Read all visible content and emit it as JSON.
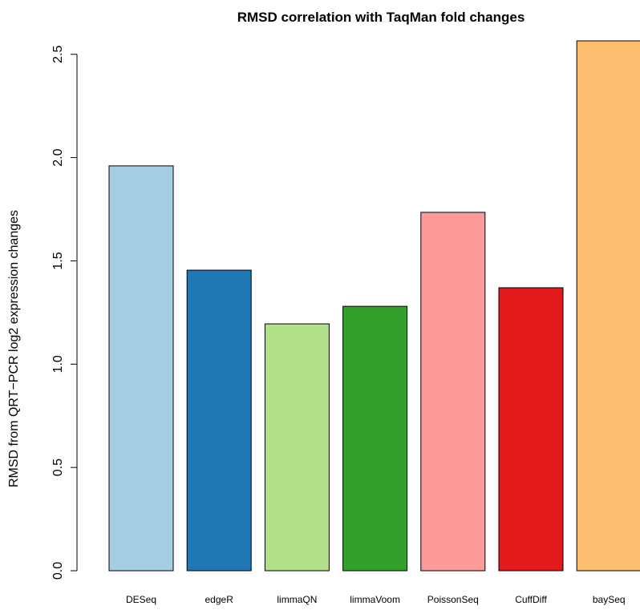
{
  "chart_data": {
    "type": "bar",
    "title": "RMSD correlation with TaqMan fold changes",
    "xlabel": "",
    "ylabel": "RMSD from QRT−PCR log2 expression changes",
    "categories": [
      "DESeq",
      "edgeR",
      "limmaQN",
      "limmaVoom",
      "PoissonSeq",
      "CuffDiff",
      "baySeq"
    ],
    "values": [
      1.96,
      1.455,
      1.195,
      1.28,
      1.735,
      1.37,
      2.565
    ],
    "colors": [
      "#A6CEE3",
      "#1F78B4",
      "#B2DF8A",
      "#33A02C",
      "#FB9A99",
      "#E31A1C",
      "#FDBF6F"
    ],
    "yticks": [
      "0.0",
      "0.5",
      "1.0",
      "1.5",
      "2.0",
      "2.5"
    ],
    "ytick_values": [
      0,
      0.5,
      1.0,
      1.5,
      2.0,
      2.5
    ],
    "ylim": [
      0,
      2.565
    ],
    "grid": false,
    "legend": false
  }
}
